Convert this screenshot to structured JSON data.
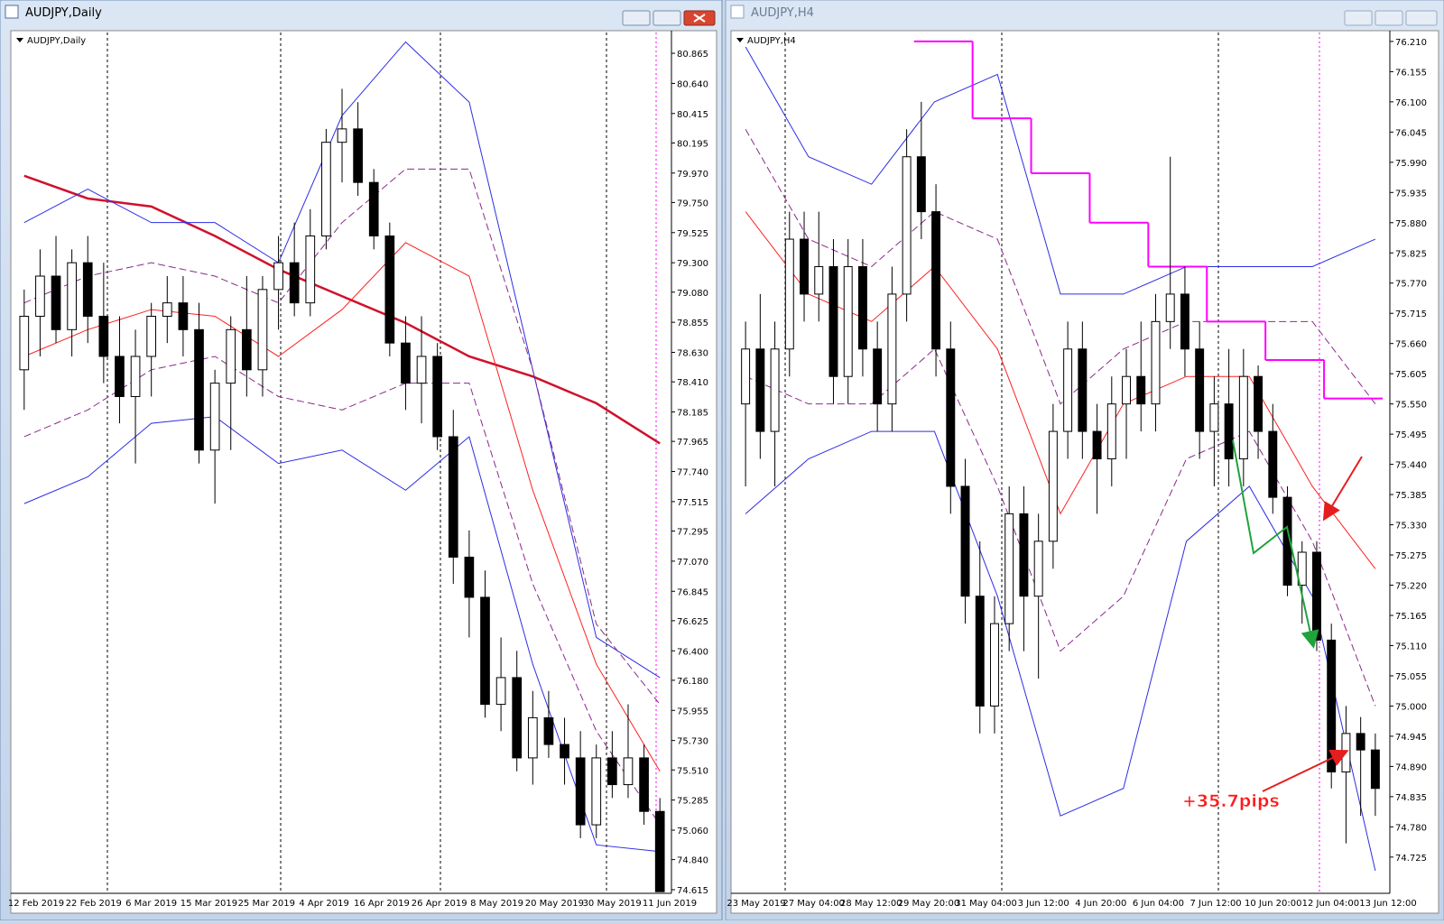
{
  "windows": [
    {
      "title": "AUDJPY,Daily",
      "chart": {
        "type": "candlestick",
        "label": "AUDJPY,Daily",
        "ylim": [
          74.588,
          81.007
        ],
        "yticks": [
          {
            "value": 80.865,
            "label": "80.865"
          },
          {
            "value": 80.64,
            "label": "80.640"
          },
          {
            "value": 80.415,
            "label": "80.415"
          },
          {
            "value": 80.195,
            "label": "80.195"
          },
          {
            "value": 79.97,
            "label": "79.970"
          },
          {
            "value": 79.75,
            "label": "79.750"
          },
          {
            "value": 79.525,
            "label": "79.525"
          },
          {
            "value": 79.3,
            "label": "79.300"
          },
          {
            "value": 79.08,
            "label": "79.080"
          },
          {
            "value": 78.855,
            "label": "78.855"
          },
          {
            "value": 78.63,
            "label": "78.630"
          },
          {
            "value": 78.41,
            "label": "78.410"
          },
          {
            "value": 78.185,
            "label": "78.185"
          },
          {
            "value": 77.965,
            "label": "77.965"
          },
          {
            "value": 77.74,
            "label": "77.740"
          },
          {
            "value": 77.515,
            "label": "77.515"
          },
          {
            "value": 77.295,
            "label": "77.295"
          },
          {
            "value": 77.07,
            "label": "77.070"
          },
          {
            "value": 76.845,
            "label": "76.845"
          },
          {
            "value": 76.625,
            "label": "76.625"
          },
          {
            "value": 76.4,
            "label": "76.400"
          },
          {
            "value": 76.18,
            "label": "76.180"
          },
          {
            "value": 75.955,
            "label": "75.955"
          },
          {
            "value": 75.73,
            "label": "75.730"
          },
          {
            "value": 75.51,
            "label": "75.510"
          },
          {
            "value": 75.285,
            "label": "75.285"
          },
          {
            "value": 75.06,
            "label": "75.060"
          },
          {
            "value": 74.84,
            "label": "74.840"
          },
          {
            "value": 74.615,
            "label": "74.615"
          }
        ],
        "x_labels": [
          "12 Feb 2019",
          "22 Feb 2019",
          "6 Mar 2019",
          "15 Mar 2019",
          "25 Mar 2019",
          "4 Apr 2019",
          "16 Apr 2019",
          "26 Apr 2019",
          "8 May 2019",
          "20 May 2019",
          "30 May 2019",
          "11 Jun 2019"
        ],
        "open": [
          78.5,
          78.9,
          79.2,
          78.8,
          79.3,
          78.9,
          78.6,
          78.3,
          78.6,
          78.9,
          79.0,
          78.8,
          77.9,
          78.4,
          78.8,
          78.5,
          79.1,
          79.3,
          79.0,
          79.5,
          80.2,
          80.3,
          79.9,
          79.5,
          78.7,
          78.4,
          78.6,
          78.0,
          77.1,
          76.8,
          76.0,
          76.2,
          75.6,
          75.9,
          75.7,
          75.6,
          75.1,
          75.6,
          75.4,
          75.6,
          75.2
        ],
        "high": [
          79.1,
          79.4,
          79.5,
          79.4,
          79.5,
          79.3,
          78.9,
          78.8,
          79.0,
          79.2,
          79.2,
          79.0,
          78.5,
          78.9,
          79.2,
          79.2,
          79.5,
          79.6,
          79.7,
          80.3,
          80.6,
          80.5,
          80.0,
          79.6,
          78.9,
          78.9,
          78.7,
          78.2,
          77.3,
          77.0,
          76.5,
          76.4,
          76.1,
          76.1,
          75.9,
          75.8,
          75.7,
          75.8,
          76.0,
          75.7,
          75.3
        ],
        "low": [
          78.2,
          78.6,
          78.7,
          78.6,
          78.7,
          78.4,
          78.1,
          77.8,
          78.3,
          78.7,
          78.6,
          77.8,
          77.5,
          77.9,
          78.3,
          78.3,
          78.8,
          78.9,
          78.9,
          79.4,
          79.9,
          79.8,
          79.4,
          78.6,
          78.2,
          78.1,
          77.9,
          76.9,
          76.5,
          75.9,
          75.8,
          75.5,
          75.4,
          75.6,
          75.4,
          75.0,
          75.0,
          75.3,
          75.3,
          75.1,
          74.6
        ],
        "close": [
          78.9,
          79.2,
          78.8,
          79.3,
          78.9,
          78.6,
          78.3,
          78.6,
          78.9,
          79.0,
          78.8,
          77.9,
          78.4,
          78.8,
          78.5,
          79.1,
          79.3,
          79.0,
          79.5,
          80.2,
          80.3,
          79.9,
          79.5,
          78.7,
          78.4,
          78.6,
          78.0,
          77.1,
          76.8,
          76.0,
          76.2,
          75.6,
          75.9,
          75.7,
          75.6,
          75.1,
          75.6,
          75.4,
          75.6,
          75.2,
          74.6
        ],
        "overlays": [
          {
            "color": "#d0112b",
            "width": 2.5,
            "style": "solid",
            "values": [
              79.95,
              79.78,
              79.72,
              79.5,
              79.25,
              79.05,
              78.85,
              78.6,
              78.45,
              78.25,
              77.95
            ]
          },
          {
            "color": "#2d2de6",
            "width": 1,
            "style": "solid",
            "values": [
              79.6,
              79.85,
              79.6,
              79.6,
              79.3,
              80.4,
              80.95,
              80.5,
              78.5,
              76.5,
              76.2
            ]
          },
          {
            "color": "#2d2de6",
            "width": 1,
            "style": "solid",
            "values": [
              77.5,
              77.7,
              78.1,
              78.15,
              77.8,
              77.9,
              77.6,
              78.0,
              76.3,
              74.95,
              74.9
            ]
          },
          {
            "color": "#ff2020",
            "width": 1,
            "style": "solid",
            "values": [
              78.6,
              78.8,
              78.95,
              78.9,
              78.6,
              78.95,
              79.45,
              79.2,
              77.6,
              76.3,
              75.5
            ]
          },
          {
            "color": "#8b2a8b",
            "width": 1,
            "style": "dashed",
            "values": [
              79.0,
              79.2,
              79.3,
              79.2,
              79.0,
              79.6,
              80.0,
              80.0,
              78.5,
              76.6,
              76.0
            ]
          },
          {
            "color": "#8b2a8b",
            "width": 1,
            "style": "dashed",
            "values": [
              78.0,
              78.2,
              78.5,
              78.6,
              78.3,
              78.2,
              78.4,
              78.4,
              76.9,
              75.8,
              75.1
            ]
          }
        ]
      }
    },
    {
      "title": "AUDJPY,H4",
      "chart": {
        "type": "candlestick",
        "label": "AUDJPY,H4",
        "ylim": [
          74.659,
          76.223
        ],
        "yticks": [
          {
            "value": 76.21,
            "label": "76.210"
          },
          {
            "value": 76.155,
            "label": "76.155"
          },
          {
            "value": 76.1,
            "label": "76.100"
          },
          {
            "value": 76.045,
            "label": "76.045"
          },
          {
            "value": 75.99,
            "label": "75.990"
          },
          {
            "value": 75.935,
            "label": "75.935"
          },
          {
            "value": 75.88,
            "label": "75.880"
          },
          {
            "value": 75.825,
            "label": "75.825"
          },
          {
            "value": 75.77,
            "label": "75.770"
          },
          {
            "value": 75.715,
            "label": "75.715"
          },
          {
            "value": 75.66,
            "label": "75.660"
          },
          {
            "value": 75.605,
            "label": "75.605"
          },
          {
            "value": 75.55,
            "label": "75.550"
          },
          {
            "value": 75.495,
            "label": "75.495"
          },
          {
            "value": 75.44,
            "label": "75.440"
          },
          {
            "value": 75.385,
            "label": "75.385"
          },
          {
            "value": 75.33,
            "label": "75.330"
          },
          {
            "value": 75.275,
            "label": "75.275"
          },
          {
            "value": 75.22,
            "label": "75.220"
          },
          {
            "value": 75.165,
            "label": "75.165"
          },
          {
            "value": 75.11,
            "label": "75.110"
          },
          {
            "value": 75.055,
            "label": "75.055"
          },
          {
            "value": 75,
            "label": "75.000"
          },
          {
            "value": 74.945,
            "label": "74.945"
          },
          {
            "value": 74.89,
            "label": "74.890"
          },
          {
            "value": 74.835,
            "label": "74.835"
          },
          {
            "value": 74.78,
            "label": "74.780"
          },
          {
            "value": 74.725,
            "label": "74.725"
          }
        ],
        "x_labels": [
          "23 May 2019",
          "27 May 04:00",
          "28 May 12:00",
          "29 May 20:00",
          "31 May 04:00",
          "3 Jun 12:00",
          "4 Jun 20:00",
          "6 Jun 04:00",
          "7 Jun 12:00",
          "10 Jun 20:00",
          "12 Jun 04:00",
          "13 Jun 12:00"
        ],
        "open": [
          75.55,
          75.65,
          75.5,
          75.65,
          75.85,
          75.75,
          75.8,
          75.6,
          75.8,
          75.65,
          75.55,
          75.75,
          76.0,
          75.9,
          75.65,
          75.4,
          75.2,
          75.0,
          75.15,
          75.35,
          75.2,
          75.3,
          75.5,
          75.65,
          75.5,
          75.45,
          75.55,
          75.6,
          75.55,
          75.7,
          75.75,
          75.65,
          75.5,
          75.55,
          75.45,
          75.6,
          75.5,
          75.38,
          75.22,
          75.28,
          75.12,
          74.88,
          74.95,
          74.92
        ],
        "high": [
          75.7,
          75.75,
          75.7,
          75.9,
          75.9,
          75.9,
          75.85,
          75.85,
          75.85,
          75.7,
          75.8,
          76.05,
          76.1,
          75.95,
          75.7,
          75.45,
          75.3,
          75.2,
          75.4,
          75.4,
          75.35,
          75.55,
          75.7,
          75.7,
          75.55,
          75.6,
          75.65,
          75.7,
          75.75,
          76.0,
          75.8,
          75.7,
          75.6,
          75.65,
          75.65,
          75.62,
          75.55,
          75.4,
          75.3,
          75.3,
          75.15,
          75.0,
          74.98,
          74.95
        ],
        "low": [
          75.4,
          75.45,
          75.4,
          75.6,
          75.7,
          75.7,
          75.55,
          75.55,
          75.6,
          75.5,
          75.5,
          75.7,
          75.85,
          75.6,
          75.35,
          75.15,
          74.95,
          74.95,
          75.1,
          75.1,
          75.05,
          75.25,
          75.45,
          75.45,
          75.35,
          75.4,
          75.45,
          75.5,
          75.5,
          75.65,
          75.6,
          75.45,
          75.4,
          75.4,
          75.4,
          75.45,
          75.35,
          75.2,
          75.15,
          75.1,
          74.85,
          74.75,
          74.8,
          74.8
        ],
        "close": [
          75.65,
          75.5,
          75.65,
          75.85,
          75.75,
          75.8,
          75.6,
          75.8,
          75.65,
          75.55,
          75.75,
          76.0,
          75.9,
          75.65,
          75.4,
          75.2,
          75.0,
          75.15,
          75.35,
          75.2,
          75.3,
          75.5,
          75.65,
          75.5,
          75.45,
          75.55,
          75.6,
          75.55,
          75.7,
          75.75,
          75.65,
          75.5,
          75.55,
          75.45,
          75.6,
          75.5,
          75.38,
          75.22,
          75.28,
          75.12,
          74.88,
          74.95,
          74.92,
          74.85
        ],
        "overlays": [
          {
            "color": "#2d2de6",
            "width": 1,
            "style": "solid",
            "values": [
              76.2,
              76.0,
              75.95,
              76.1,
              76.15,
              75.75,
              75.75,
              75.8,
              75.8,
              75.8,
              75.85
            ]
          },
          {
            "color": "#2d2de6",
            "width": 1,
            "style": "solid",
            "values": [
              75.35,
              75.45,
              75.5,
              75.5,
              75.2,
              74.8,
              74.85,
              75.3,
              75.4,
              75.2,
              74.7
            ]
          },
          {
            "color": "#ff2020",
            "width": 1,
            "style": "solid",
            "values": [
              75.9,
              75.75,
              75.7,
              75.8,
              75.65,
              75.35,
              75.55,
              75.6,
              75.6,
              75.4,
              75.25
            ]
          },
          {
            "color": "#8b2a8b",
            "width": 1,
            "style": "dashed",
            "values": [
              76.05,
              75.85,
              75.8,
              75.9,
              75.85,
              75.55,
              75.65,
              75.7,
              75.7,
              75.7,
              75.55
            ]
          },
          {
            "color": "#8b2a8b",
            "width": 1,
            "style": "dashed",
            "values": [
              75.6,
              75.55,
              75.55,
              75.65,
              75.4,
              75.1,
              75.2,
              75.45,
              75.5,
              75.3,
              75.0
            ]
          },
          {
            "color": "#ff00ff",
            "width": 2,
            "style": "step",
            "values": [
              null,
              null,
              null,
              76.21,
              76.07,
              75.97,
              75.88,
              75.8,
              75.7,
              75.63,
              75.56
            ]
          }
        ],
        "annotations": [
          {
            "text": "+35.7pips",
            "color": "#ff1a1a"
          }
        ]
      }
    }
  ]
}
